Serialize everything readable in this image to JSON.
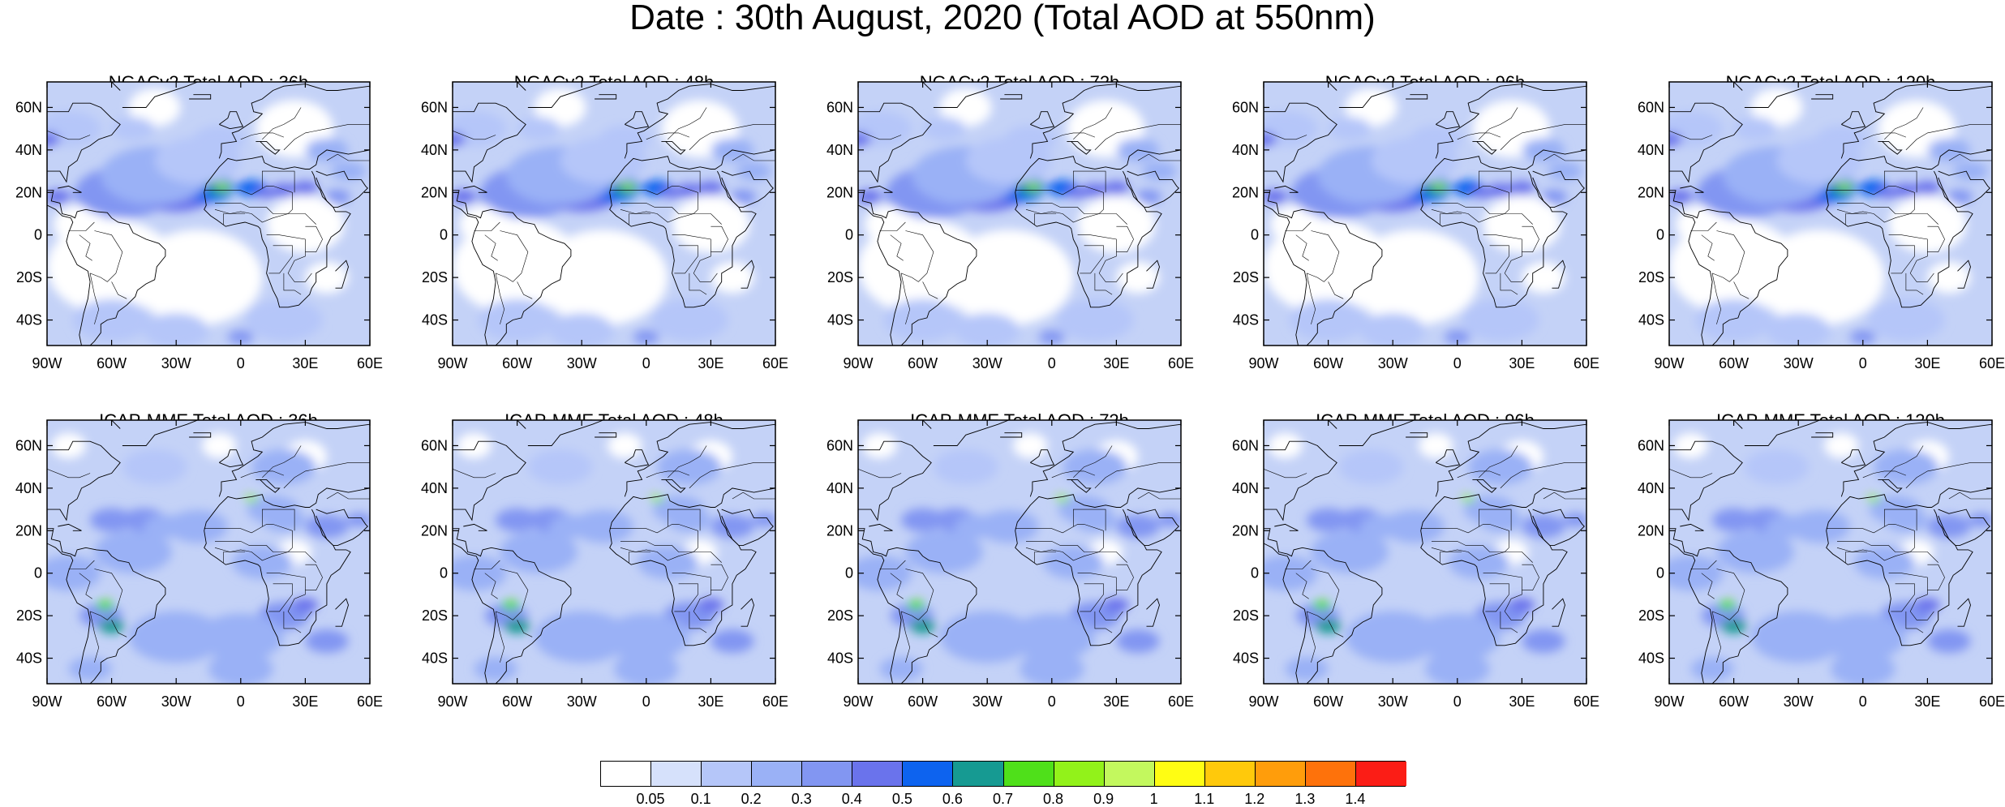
{
  "title": "Date : 30th August, 2020 (Total AOD at 550nm)",
  "panels": [
    {
      "title": "NGACv2 Total AOD : 36h",
      "model": "ngac"
    },
    {
      "title": "NGACv2 Total AOD : 48h",
      "model": "ngac"
    },
    {
      "title": "NGACv2 Total AOD : 72h",
      "model": "ngac"
    },
    {
      "title": "NGACv2 Total AOD : 96h",
      "model": "ngac"
    },
    {
      "title": "NGACv2 Total AOD : 120h",
      "model": "ngac"
    },
    {
      "title": "ICAP-MME Total AOD : 36h",
      "model": "icap"
    },
    {
      "title": "ICAP-MME Total AOD : 48h",
      "model": "icap"
    },
    {
      "title": "ICAP-MME Total AOD : 72h",
      "model": "icap"
    },
    {
      "title": "ICAP-MME Total AOD : 96h",
      "model": "icap"
    },
    {
      "title": "ICAP-MME Total AOD : 120h",
      "model": "icap"
    }
  ],
  "axes": {
    "lon_range": [
      -90,
      60
    ],
    "lat_range": [
      -52,
      72
    ],
    "lat_ticks": [
      {
        "value": 60,
        "label": "60N"
      },
      {
        "value": 40,
        "label": "40N"
      },
      {
        "value": 20,
        "label": "20N"
      },
      {
        "value": 0,
        "label": "0"
      },
      {
        "value": -20,
        "label": "20S"
      },
      {
        "value": -40,
        "label": "40S"
      }
    ],
    "lon_ticks": [
      {
        "value": -90,
        "label": "90W"
      },
      {
        "value": -60,
        "label": "60W"
      },
      {
        "value": -30,
        "label": "30W"
      },
      {
        "value": 0,
        "label": "0"
      },
      {
        "value": 30,
        "label": "30E"
      },
      {
        "value": 60,
        "label": "60E"
      }
    ]
  },
  "colorbar": {
    "labels": [
      "0.05",
      "0.1",
      "0.2",
      "0.3",
      "0.4",
      "0.5",
      "0.6",
      "0.7",
      "0.8",
      "0.9",
      "1",
      "1.1",
      "1.2",
      "1.3",
      "1.4"
    ],
    "colors": [
      "#ffffff",
      "#d6e1fb",
      "#b5c6f9",
      "#9ab1f6",
      "#8296f2",
      "#6a73ec",
      "#0d63ef",
      "#169a92",
      "#4fe01a",
      "#92f21a",
      "#c3f85e",
      "#fffd13",
      "#ffc90b",
      "#ff9d0b",
      "#fe720b",
      "#fb1d16"
    ]
  },
  "base_color": "#c4d2f7"
}
